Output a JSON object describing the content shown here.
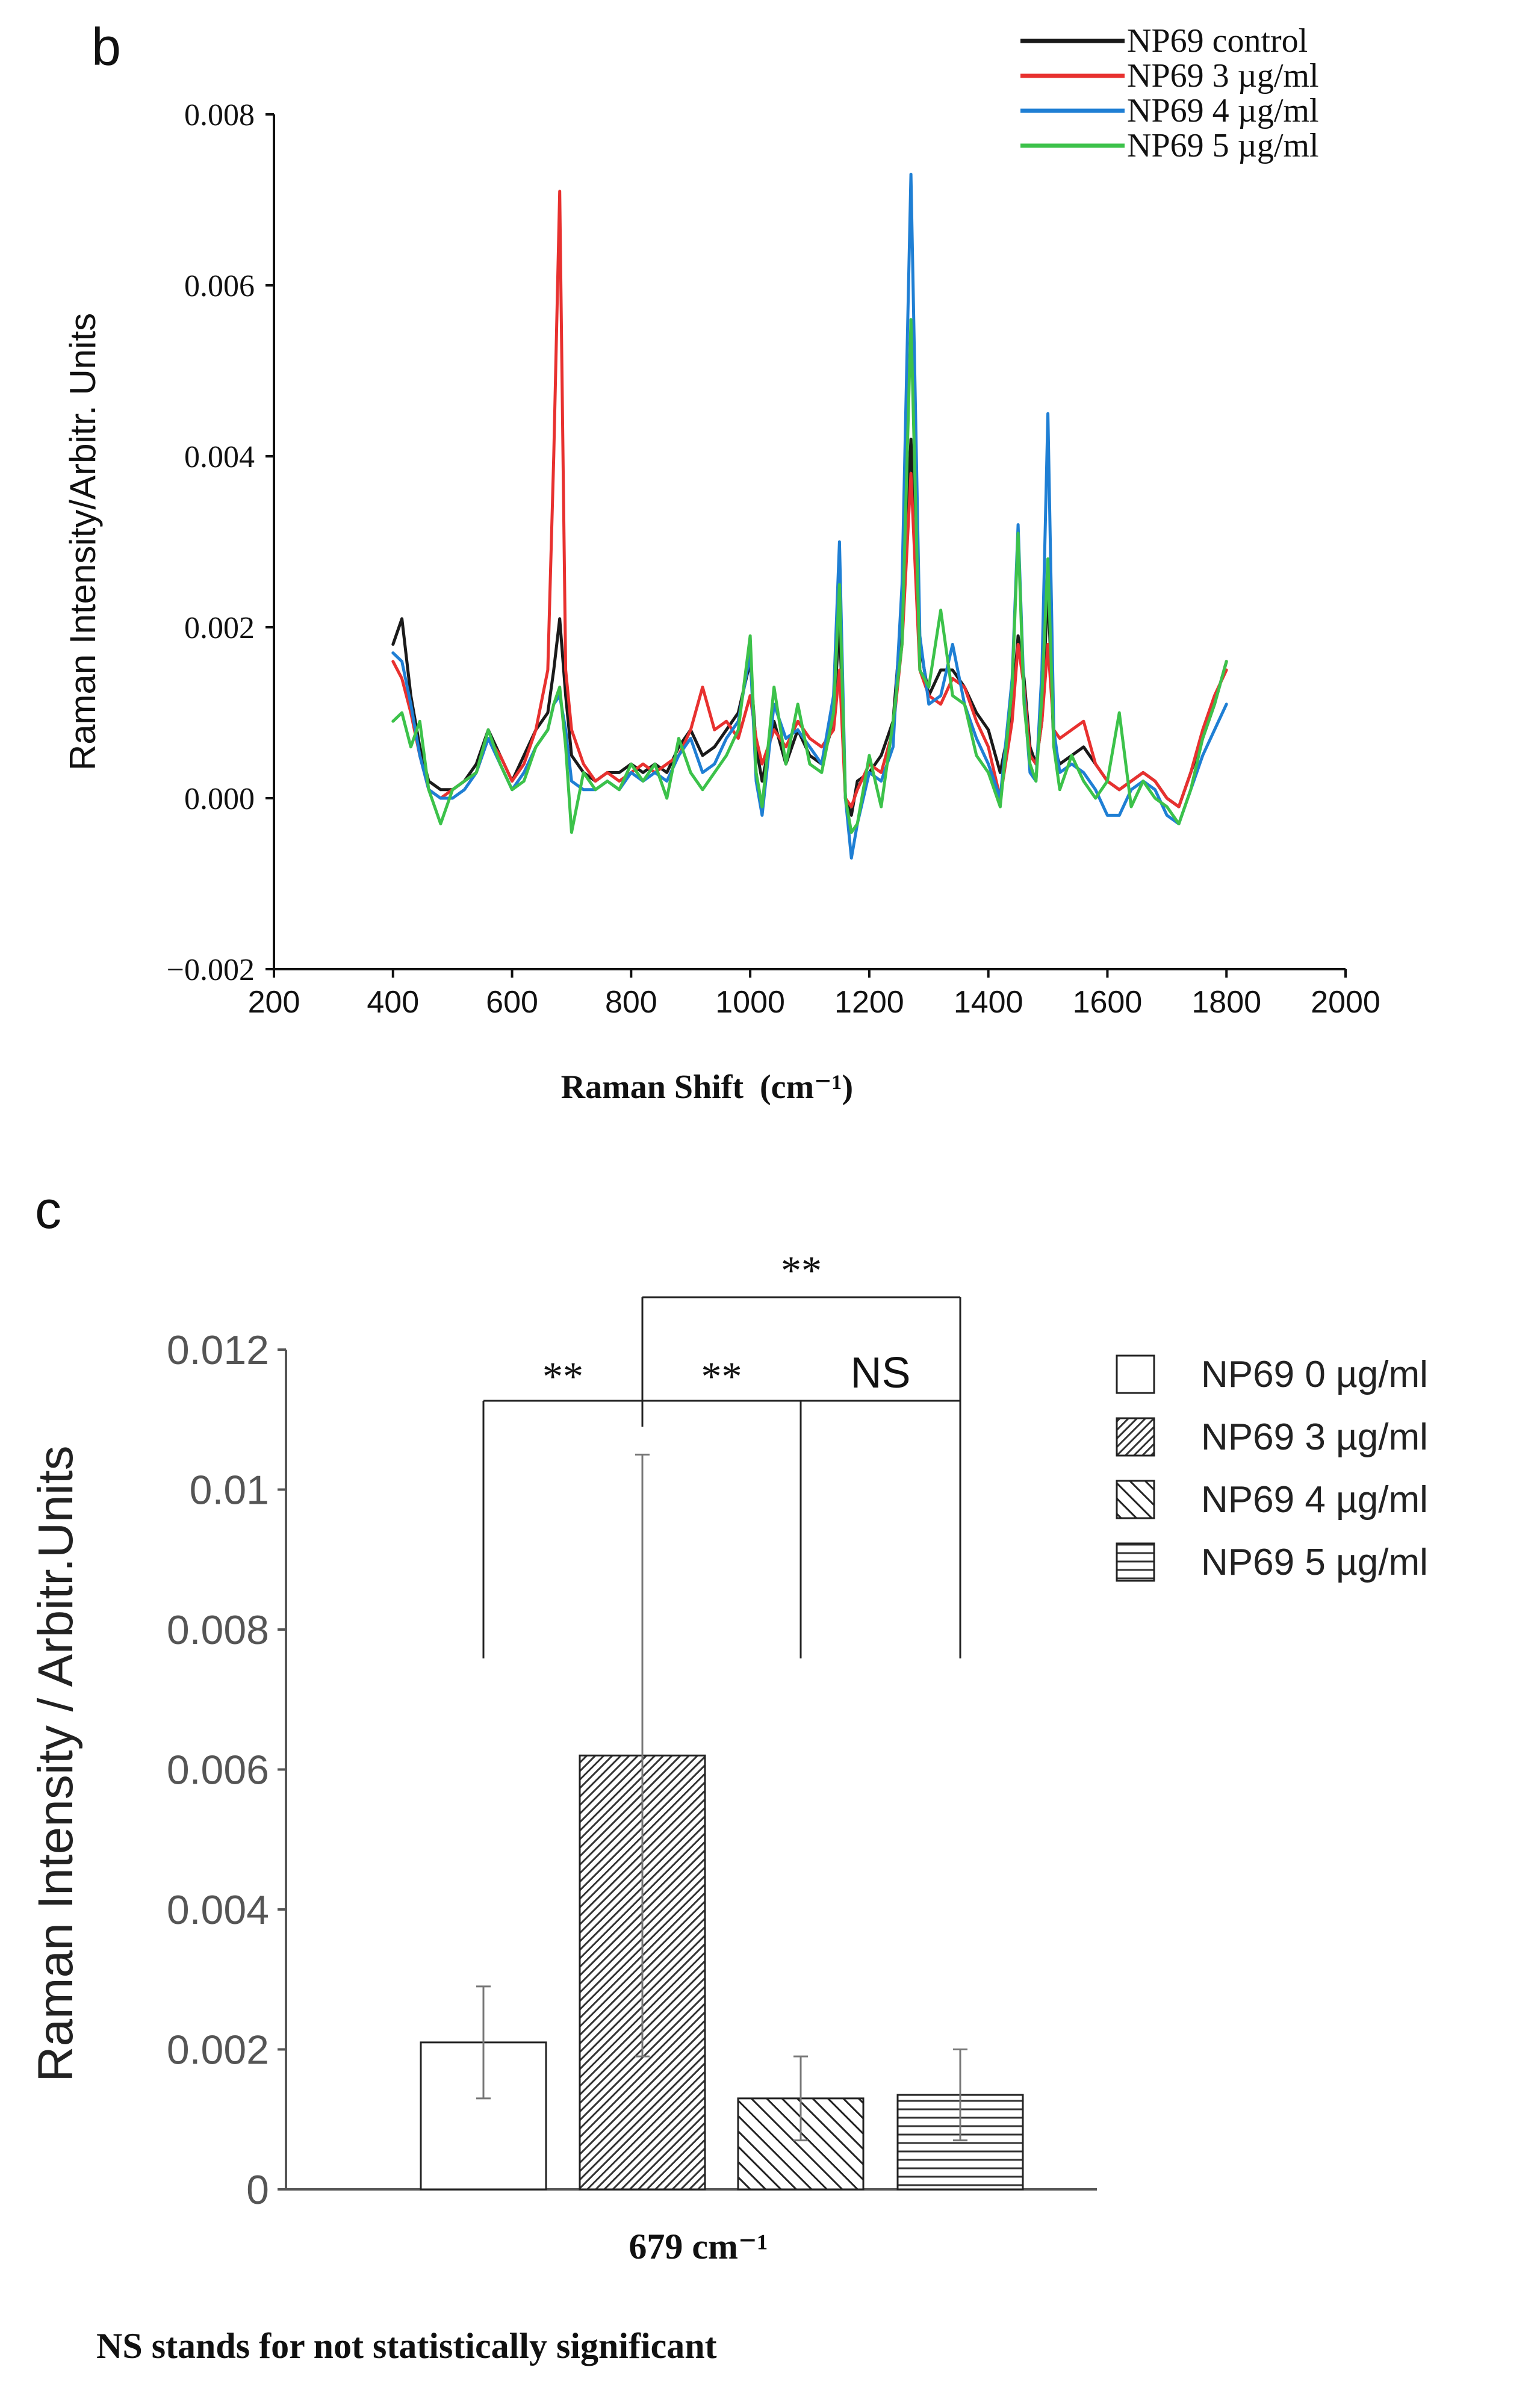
{
  "chart_data": [
    {
      "panel_label": "b",
      "type": "line",
      "title": "",
      "xlabel": "Raman Shift",
      "xlabel_unit": "(cm⁻¹)",
      "ylabel": "Raman Intensity/Arbitr. Units",
      "xlim": [
        200,
        2000
      ],
      "ylim": [
        -0.002,
        0.008
      ],
      "xticks": [
        200,
        400,
        600,
        800,
        1000,
        1200,
        1400,
        1600,
        1800,
        2000
      ],
      "yticks": [
        -0.002,
        0.0,
        0.002,
        0.004,
        0.006,
        0.008
      ],
      "ytick_labels": [
        "−0.002",
        "0.000",
        "0.002",
        "0.004",
        "0.006",
        "0.008"
      ],
      "grid": false,
      "legend_position": "top-right",
      "x": [
        400,
        415,
        430,
        445,
        460,
        480,
        500,
        520,
        540,
        560,
        580,
        600,
        620,
        640,
        660,
        670,
        680,
        690,
        700,
        720,
        740,
        760,
        780,
        800,
        820,
        840,
        860,
        880,
        900,
        920,
        940,
        960,
        980,
        1000,
        1010,
        1020,
        1040,
        1060,
        1080,
        1100,
        1120,
        1140,
        1150,
        1160,
        1170,
        1180,
        1200,
        1220,
        1240,
        1255,
        1270,
        1285,
        1300,
        1320,
        1340,
        1360,
        1380,
        1400,
        1420,
        1440,
        1450,
        1460,
        1470,
        1480,
        1490,
        1500,
        1510,
        1520,
        1540,
        1560,
        1580,
        1600,
        1620,
        1640,
        1660,
        1680,
        1700,
        1720,
        1740,
        1760,
        1780,
        1800
      ],
      "series": [
        {
          "name": "NP69  control",
          "color": "#1a1a1a",
          "values": [
            0.0018,
            0.0021,
            0.0012,
            0.0006,
            0.0002,
            0.0001,
            0.0001,
            0.0002,
            0.0004,
            0.0008,
            0.0005,
            0.0002,
            0.0005,
            0.0008,
            0.001,
            0.0015,
            0.0021,
            0.0012,
            0.0005,
            0.0003,
            0.0002,
            0.0003,
            0.0003,
            0.0004,
            0.0003,
            0.0004,
            0.0003,
            0.0006,
            0.0008,
            0.0005,
            0.0006,
            0.0008,
            0.001,
            0.0016,
            0.0006,
            0.0002,
            0.0009,
            0.0004,
            0.0008,
            0.0005,
            0.0004,
            0.0009,
            0.0021,
            0.0,
            -0.0002,
            0.0002,
            0.0003,
            0.0005,
            0.0009,
            0.0022,
            0.0042,
            0.0018,
            0.0012,
            0.0015,
            0.0015,
            0.0013,
            0.001,
            0.0008,
            0.0003,
            0.001,
            0.0019,
            0.0014,
            0.0006,
            0.0004,
            0.0009,
            0.0025,
            0.0006,
            0.0004,
            0.0005,
            0.0006,
            0.0004,
            0.0002,
            0.0001,
            0.0002,
            0.0003,
            0.0002,
            0.0,
            -0.0001,
            0.0003,
            0.0007,
            0.0011,
            0.0016
          ]
        },
        {
          "name": "NP69 3 µg/ml",
          "color": "#e8312f",
          "values": [
            0.0016,
            0.0014,
            0.001,
            0.0005,
            0.0001,
            0.0,
            0.0001,
            0.0002,
            0.0003,
            0.0007,
            0.0005,
            0.0002,
            0.0004,
            0.0008,
            0.0015,
            0.004,
            0.0071,
            0.0015,
            0.0008,
            0.0004,
            0.0002,
            0.0003,
            0.0002,
            0.0003,
            0.0004,
            0.0003,
            0.0004,
            0.0005,
            0.0008,
            0.0013,
            0.0008,
            0.0009,
            0.0007,
            0.0012,
            0.0007,
            0.0004,
            0.0008,
            0.0006,
            0.0009,
            0.0007,
            0.0006,
            0.0008,
            0.0015,
            0.0,
            -0.0001,
            0.0001,
            0.0004,
            0.0003,
            0.0008,
            0.0018,
            0.0038,
            0.0015,
            0.0012,
            0.0011,
            0.0014,
            0.0013,
            0.0009,
            0.0006,
            0.0,
            0.0009,
            0.0018,
            0.0013,
            0.0005,
            0.0004,
            0.0009,
            0.0018,
            0.0008,
            0.0007,
            0.0008,
            0.0009,
            0.0004,
            0.0002,
            0.0001,
            0.0002,
            0.0003,
            0.0002,
            0.0,
            -0.0001,
            0.0003,
            0.0008,
            0.0012,
            0.0015
          ]
        },
        {
          "name": "NP69 4 µg/ml",
          "color": "#1f7fd4",
          "values": [
            0.0017,
            0.0016,
            0.0011,
            0.0005,
            0.0001,
            0.0,
            0.0,
            0.0001,
            0.0003,
            0.0007,
            0.0004,
            0.0001,
            0.0003,
            0.0006,
            0.0008,
            0.0011,
            0.0012,
            0.0008,
            0.0002,
            0.0001,
            0.0001,
            0.0002,
            0.0001,
            0.0003,
            0.0002,
            0.0003,
            0.0002,
            0.0005,
            0.0007,
            0.0003,
            0.0004,
            0.0007,
            0.0009,
            0.0017,
            0.0002,
            -0.0002,
            0.0011,
            0.0007,
            0.0008,
            0.0006,
            0.0004,
            0.0012,
            0.003,
            0.0,
            -0.0007,
            -0.0003,
            0.0003,
            0.0002,
            0.0006,
            0.0025,
            0.0073,
            0.0019,
            0.0011,
            0.0012,
            0.0018,
            0.0011,
            0.0007,
            0.0004,
            0.0,
            0.0014,
            0.0032,
            0.0012,
            0.0003,
            0.0002,
            0.0015,
            0.0045,
            0.0008,
            0.0003,
            0.0004,
            0.0003,
            0.0001,
            -0.0002,
            -0.0002,
            0.0001,
            0.0002,
            0.0001,
            -0.0002,
            -0.0003,
            0.0001,
            0.0005,
            0.0008,
            0.0011
          ]
        },
        {
          "name": "NP69 5 µg/ml",
          "color": "#3cc24a",
          "values": [
            0.0009,
            0.001,
            0.0006,
            0.0009,
            0.0001,
            -0.0003,
            0.0001,
            0.0002,
            0.0003,
            0.0008,
            0.0004,
            0.0001,
            0.0002,
            0.0006,
            0.0008,
            0.0011,
            0.0013,
            0.0006,
            -0.0004,
            0.0003,
            0.0001,
            0.0002,
            0.0001,
            0.0004,
            0.0002,
            0.0004,
            0.0,
            0.0007,
            0.0003,
            0.0001,
            0.0003,
            0.0005,
            0.0008,
            0.0019,
            0.0003,
            -0.0001,
            0.0013,
            0.0004,
            0.0011,
            0.0004,
            0.0003,
            0.001,
            0.0025,
            0.0,
            -0.0004,
            -0.0003,
            0.0005,
            -0.0001,
            0.0009,
            0.0018,
            0.0056,
            0.0015,
            0.0013,
            0.0022,
            0.0012,
            0.0011,
            0.0005,
            0.0003,
            -0.0001,
            0.0013,
            0.0031,
            0.0011,
            0.0004,
            0.0002,
            0.0012,
            0.0028,
            0.0006,
            0.0001,
            0.0005,
            0.0002,
            0.0,
            0.0002,
            0.001,
            -0.0001,
            0.0002,
            0.0,
            -0.0001,
            -0.0003,
            0.0001,
            0.0007,
            0.0011,
            0.0016
          ]
        }
      ]
    },
    {
      "panel_label": "c",
      "type": "bar",
      "title": "",
      "xlabel": "679 cm⁻¹",
      "ylabel": "Raman Intensity / Arbitr.Units",
      "ylim": [
        0,
        0.012
      ],
      "yticks": [
        0,
        0.002,
        0.004,
        0.006,
        0.008,
        0.01,
        0.012
      ],
      "ytick_labels": [
        "0",
        "0.002",
        "0.004",
        "0.006",
        "0.008",
        "0.01",
        "0.012"
      ],
      "grid": false,
      "legend_position": "right",
      "categories": [
        "NP69  0 µg/ml",
        "NP69  3 µg/ml",
        "NP69  4 µg/ml",
        "NP69  5 µg/ml"
      ],
      "values": [
        0.0021,
        0.0062,
        0.0013,
        0.00135
      ],
      "errors": [
        0.0008,
        0.0043,
        0.0006,
        0.00065
      ],
      "patterns": [
        "none",
        "dense-diagonal",
        "diagonal",
        "horizontal"
      ],
      "significance": [
        {
          "from": 0,
          "to": 1,
          "label": "**"
        },
        {
          "from": 1,
          "to": 2,
          "label": "**"
        },
        {
          "from": 2,
          "to": 3,
          "label": "NS"
        },
        {
          "from": 1,
          "to": 3,
          "label": "**"
        }
      ],
      "footnote": "NS stands for not statistically significant"
    }
  ]
}
